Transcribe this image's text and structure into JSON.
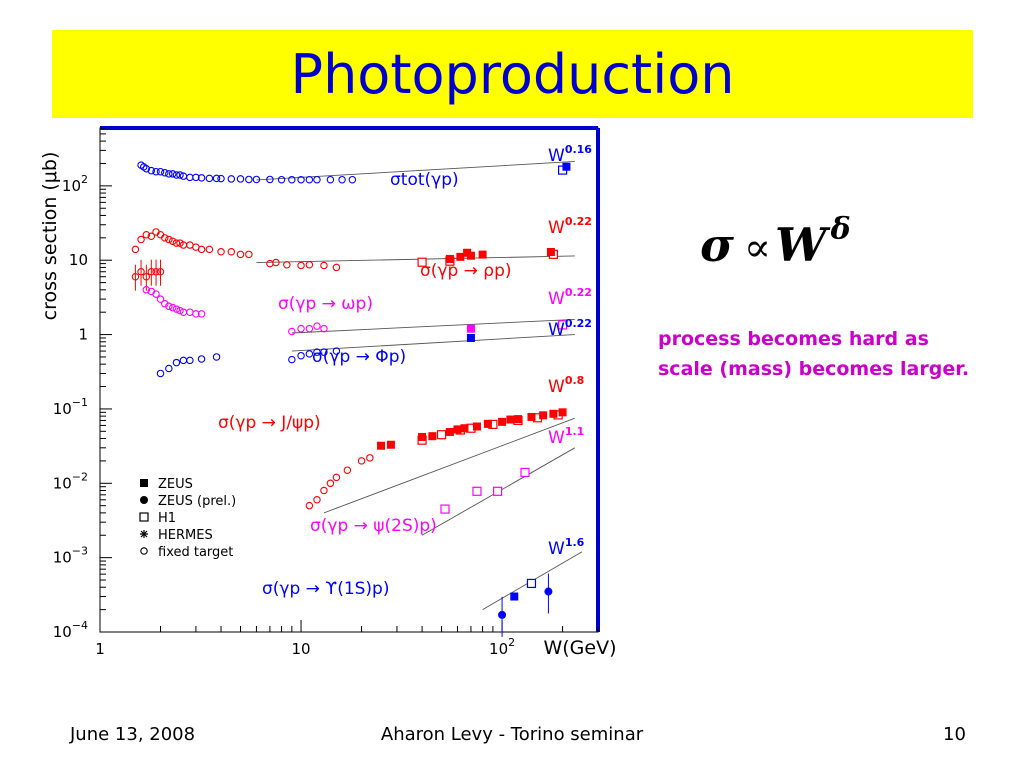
{
  "slide": {
    "title": "Photoproduction",
    "formula": {
      "sigma": "σ",
      "prop": "∝",
      "W": "W",
      "delta": "δ"
    },
    "note": "process becomes hard as scale (mass) becomes larger.",
    "footer": {
      "date": "June 13, 2008",
      "center": "Aharon Levy - Torino seminar",
      "page": "10"
    }
  },
  "colors": {
    "title_bg": "#ffff00",
    "title_text": "#0000cc",
    "frame": "#0000cc",
    "note": "#cc00cc",
    "tot": "#0000ff",
    "rho": "#ff0000",
    "omega": "#ff00ff",
    "phi": "#0000ff",
    "jpsi": "#ff0000",
    "psi2s": "#ff00ff",
    "upsilon": "#0000ff"
  },
  "chart_data": {
    "type": "scatter",
    "x_scale": "log",
    "y_scale": "log",
    "xlim": [
      1,
      300
    ],
    "ylim": [
      0.0001,
      600
    ],
    "xlabel": "W(GeV)",
    "ylabel": "cross section (μb)",
    "xticks": [
      {
        "v": 1,
        "b": "1",
        "e": ""
      },
      {
        "v": 10,
        "b": "10",
        "e": ""
      },
      {
        "v": 100,
        "b": "10",
        "e": "2"
      }
    ],
    "yticks": [
      {
        "v": 100,
        "b": "10",
        "e": "2"
      },
      {
        "v": 10,
        "b": "10",
        "e": ""
      },
      {
        "v": 1,
        "b": "1",
        "e": ""
      },
      {
        "v": 0.1,
        "b": "10",
        "e": "−1"
      },
      {
        "v": 0.01,
        "b": "10",
        "e": "−2"
      },
      {
        "v": 0.001,
        "b": "10",
        "e": "−3"
      },
      {
        "v": 0.0001,
        "b": "10",
        "e": "−4"
      }
    ],
    "legend": {
      "placement": "bottom-left",
      "entries": [
        {
          "marker": "square-filled",
          "label": "ZEUS"
        },
        {
          "marker": "circle-filled",
          "label": "ZEUS (prel.)"
        },
        {
          "marker": "square-open",
          "label": "H1"
        },
        {
          "marker": "star",
          "label": "HERMES"
        },
        {
          "marker": "circle-open",
          "label": "fixed target"
        }
      ]
    },
    "series": [
      {
        "key": "tot",
        "label": "σtot(γp)",
        "color": "#0000ff",
        "fit_label": "W",
        "fit_exp": "0.16",
        "fit": [
          [
            6,
            120
          ],
          [
            230,
            213
          ]
        ],
        "fixed_target": [
          [
            1.6,
            190
          ],
          [
            1.65,
            180
          ],
          [
            1.7,
            170
          ],
          [
            1.8,
            160
          ],
          [
            1.9,
            155
          ],
          [
            2.0,
            155
          ],
          [
            2.1,
            150
          ],
          [
            2.2,
            145
          ],
          [
            2.3,
            145
          ],
          [
            2.4,
            140
          ],
          [
            2.5,
            140
          ],
          [
            2.6,
            135
          ],
          [
            2.8,
            130
          ],
          [
            3.0,
            130
          ],
          [
            3.2,
            128
          ],
          [
            3.5,
            126
          ],
          [
            3.8,
            126
          ],
          [
            4.0,
            125
          ],
          [
            4.5,
            124
          ],
          [
            5,
            124
          ],
          [
            5.5,
            122
          ],
          [
            6,
            122
          ],
          [
            7,
            122
          ],
          [
            8,
            121
          ],
          [
            9,
            121
          ],
          [
            10,
            121
          ],
          [
            11,
            121
          ],
          [
            12,
            121
          ],
          [
            14,
            121
          ],
          [
            16,
            121
          ],
          [
            18,
            121
          ]
        ],
        "zeus": [
          [
            209,
            181
          ]
        ],
        "h1": [
          [
            200,
            163
          ]
        ]
      },
      {
        "key": "rho",
        "label": "σ(γp → ρp)",
        "color": "#ff0000",
        "fit_label": "W",
        "fit_exp": "0.22",
        "fit": [
          [
            6,
            9.3
          ],
          [
            230,
            11.4
          ]
        ],
        "fixed_target": [
          [
            1.5,
            14
          ],
          [
            1.6,
            19
          ],
          [
            1.7,
            22
          ],
          [
            1.8,
            21
          ],
          [
            1.9,
            24
          ],
          [
            2.0,
            22
          ],
          [
            2.1,
            20
          ],
          [
            2.2,
            19
          ],
          [
            2.3,
            18
          ],
          [
            2.4,
            17
          ],
          [
            2.5,
            17
          ],
          [
            2.6,
            16
          ],
          [
            2.8,
            16
          ],
          [
            3.0,
            15
          ],
          [
            3.2,
            14
          ],
          [
            3.5,
            14
          ],
          [
            4.0,
            13
          ],
          [
            4.5,
            13
          ],
          [
            5.0,
            12
          ],
          [
            5.5,
            12
          ],
          [
            7,
            9
          ],
          [
            7.5,
            9.3
          ],
          [
            8.5,
            8.7
          ],
          [
            10,
            8.5
          ],
          [
            11,
            8.7
          ],
          [
            13,
            8.5
          ],
          [
            15,
            8
          ]
        ],
        "fixed_target_low": [
          [
            1.5,
            6
          ],
          [
            1.6,
            7
          ],
          [
            1.7,
            6
          ],
          [
            1.8,
            7
          ],
          [
            1.9,
            7
          ],
          [
            2.0,
            7
          ]
        ],
        "zeus": [
          [
            55,
            10.4
          ],
          [
            62,
            11.1
          ],
          [
            67,
            12.6
          ],
          [
            70,
            11.5
          ],
          [
            80,
            11.9
          ],
          [
            175,
            12.9
          ]
        ],
        "h1": [
          [
            55,
            9.7
          ],
          [
            40,
            9.4
          ],
          [
            180,
            12
          ]
        ]
      },
      {
        "key": "omega",
        "label": "σ(γp → ωp)",
        "color": "#ff00ff",
        "fit_label": "W",
        "fit_exp": "0.22",
        "fit": [
          [
            9,
            1.05
          ],
          [
            230,
            1.6
          ]
        ],
        "fixed_target": [
          [
            1.7,
            4.0
          ],
          [
            1.8,
            3.8
          ],
          [
            1.9,
            3.5
          ],
          [
            2.0,
            3.0
          ],
          [
            2.1,
            2.6
          ],
          [
            2.2,
            2.4
          ],
          [
            2.3,
            2.3
          ],
          [
            2.4,
            2.2
          ],
          [
            2.5,
            2.1
          ],
          [
            2.6,
            2.0
          ],
          [
            2.8,
            2.0
          ],
          [
            3.0,
            1.9
          ],
          [
            3.2,
            1.9
          ],
          [
            9,
            1.1
          ],
          [
            10,
            1.2
          ],
          [
            11,
            1.2
          ],
          [
            12,
            1.3
          ],
          [
            13,
            1.2
          ]
        ],
        "zeus": [
          [
            70,
            1.2
          ]
        ],
        "h1": [
          [
            200,
            1.35
          ]
        ]
      },
      {
        "key": "phi",
        "label": "σ(γp → Φp)",
        "color": "#0000ff",
        "fit_label": "W",
        "fit_exp": "0.22",
        "fit": [
          [
            9,
            0.6
          ],
          [
            230,
            1.0
          ]
        ],
        "fixed_target": [
          [
            2.0,
            0.3
          ],
          [
            2.2,
            0.35
          ],
          [
            2.4,
            0.42
          ],
          [
            2.6,
            0.45
          ],
          [
            2.8,
            0.45
          ],
          [
            3.2,
            0.47
          ],
          [
            3.8,
            0.5
          ],
          [
            9,
            0.46
          ],
          [
            10,
            0.52
          ],
          [
            11,
            0.55
          ],
          [
            12,
            0.58
          ],
          [
            13,
            0.58
          ],
          [
            15,
            0.6
          ]
        ],
        "zeus": [
          [
            70,
            0.9
          ]
        ]
      },
      {
        "key": "jpsi",
        "label": "σ(γp → J/ψp)",
        "color": "#ff0000",
        "fit_label": "W",
        "fit_exp": "0.8",
        "fit": [
          [
            13,
            0.004
          ],
          [
            230,
            0.075
          ]
        ],
        "fixed_target": [
          [
            11,
            0.005
          ],
          [
            12,
            0.006
          ],
          [
            13,
            0.008
          ],
          [
            14,
            0.01
          ],
          [
            15,
            0.012
          ],
          [
            17,
            0.015
          ],
          [
            20,
            0.02
          ],
          [
            22,
            0.022
          ]
        ],
        "zeus": [
          [
            25,
            0.032
          ],
          [
            28,
            0.033
          ],
          [
            40,
            0.042
          ],
          [
            45,
            0.043
          ],
          [
            55,
            0.049
          ],
          [
            60,
            0.053
          ],
          [
            65,
            0.055
          ],
          [
            75,
            0.058
          ],
          [
            85,
            0.063
          ],
          [
            100,
            0.067
          ],
          [
            110,
            0.072
          ],
          [
            120,
            0.073
          ],
          [
            140,
            0.078
          ],
          [
            160,
            0.082
          ],
          [
            180,
            0.086
          ],
          [
            200,
            0.09
          ]
        ],
        "h1": [
          [
            40,
            0.038
          ],
          [
            50,
            0.045
          ],
          [
            62,
            0.052
          ],
          [
            70,
            0.055
          ],
          [
            90,
            0.062
          ],
          [
            120,
            0.07
          ],
          [
            150,
            0.076
          ],
          [
            190,
            0.083
          ]
        ]
      },
      {
        "key": "psi2s",
        "label": "σ(γp → ψ(2S)p)",
        "color": "#ff00ff",
        "fit_label": "W",
        "fit_exp": "1.1",
        "fit": [
          [
            40,
            0.002
          ],
          [
            230,
            0.03
          ]
        ],
        "h1": [
          [
            52,
            0.0045
          ],
          [
            75,
            0.0078
          ],
          [
            95,
            0.0078
          ],
          [
            130,
            0.014
          ]
        ]
      },
      {
        "key": "upsilon",
        "label": "σ(γp → ϒ(1S)p)",
        "color": "#0000ff",
        "fit_label": "W",
        "fit_exp": "1.6",
        "fit": [
          [
            80,
            0.0002
          ],
          [
            250,
            0.0012
          ]
        ],
        "zeus": [
          [
            115,
            0.0003
          ]
        ],
        "zeus_prel": [
          [
            100,
            0.00017
          ],
          [
            170,
            0.00035
          ]
        ],
        "h1": [
          [
            140,
            0.00045
          ]
        ]
      }
    ]
  }
}
